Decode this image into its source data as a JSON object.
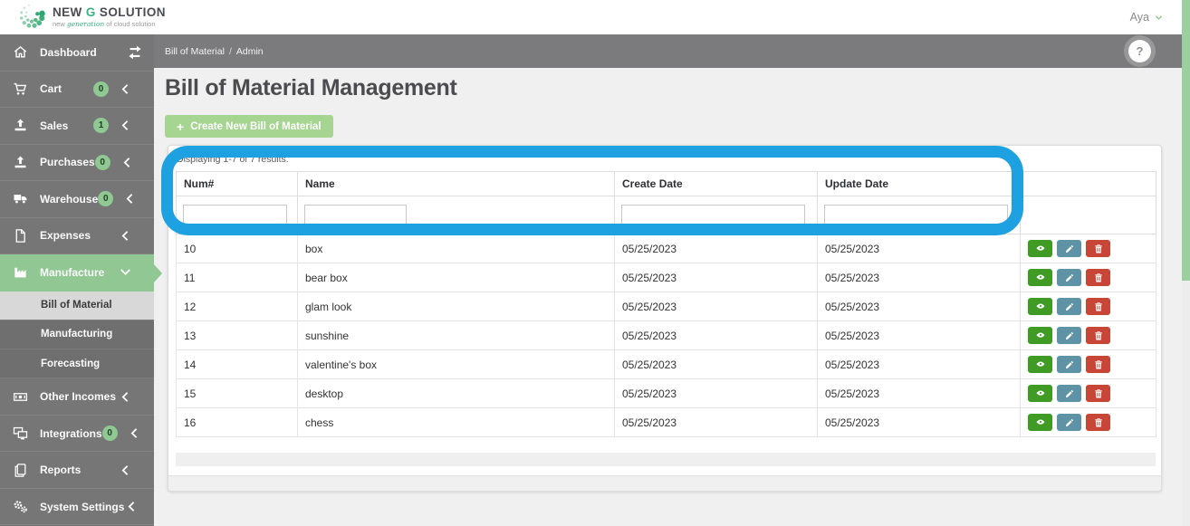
{
  "topbar": {
    "user_name": "Aya"
  },
  "logo": {
    "brand_new": "NEW",
    "brand_g": "G",
    "brand_solution": "SOLUTION",
    "tagline_pre": "new",
    "tagline_accent": "generation",
    "tagline_post": "of cloud solution"
  },
  "breadcrumb": {
    "section": "Bill of Material",
    "separator": "/",
    "page": "Admin"
  },
  "page": {
    "title": "Bill of Material Management",
    "create_button_label": "Create New Bill of Material",
    "plus_glyph": "+",
    "summary": "Displaying 1-7 of 7 results.",
    "help_glyph": "?"
  },
  "sidebar": {
    "items": [
      {
        "label": "Dashboard",
        "icon": "home",
        "right_icon": "swap"
      },
      {
        "label": "Cart",
        "icon": "cart",
        "badge": "0",
        "chevron": "left"
      },
      {
        "label": "Sales",
        "icon": "upload",
        "badge": "1",
        "chevron": "left"
      },
      {
        "label": "Purchases",
        "icon": "upload",
        "badge": "0",
        "chevron": "left"
      },
      {
        "label": "Warehouse",
        "icon": "truck",
        "badge": "0",
        "chevron": "left"
      },
      {
        "label": "Expenses",
        "icon": "file",
        "chevron": "left"
      },
      {
        "label": "Manufacture",
        "icon": "factory",
        "chevron": "down",
        "active": true,
        "submenu": [
          {
            "label": "Bill of Material",
            "active": true
          },
          {
            "label": "Manufacturing"
          },
          {
            "label": "Forecasting"
          }
        ]
      },
      {
        "label": "Other Incomes",
        "icon": "money",
        "chevron": "left"
      },
      {
        "label": "Integrations",
        "icon": "screens",
        "badge": "0",
        "chevron": "left"
      },
      {
        "label": "Reports",
        "icon": "copy",
        "chevron": "left"
      },
      {
        "label": "System Settings",
        "icon": "gears",
        "chevron": "left"
      }
    ]
  },
  "table": {
    "columns": [
      "Num#",
      "Name",
      "Create Date",
      "Update Date"
    ],
    "rows": [
      {
        "num": "10",
        "name": "box",
        "create_date": "05/25/2023",
        "update_date": "05/25/2023"
      },
      {
        "num": "11",
        "name": "bear box",
        "create_date": "05/25/2023",
        "update_date": "05/25/2023"
      },
      {
        "num": "12",
        "name": "glam look",
        "create_date": "05/25/2023",
        "update_date": "05/25/2023"
      },
      {
        "num": "13",
        "name": "sunshine",
        "create_date": "05/25/2023",
        "update_date": "05/25/2023"
      },
      {
        "num": "14",
        "name": "valentine's box",
        "create_date": "05/25/2023",
        "update_date": "05/25/2023"
      },
      {
        "num": "15",
        "name": "desktop",
        "create_date": "05/25/2023",
        "update_date": "05/25/2023"
      },
      {
        "num": "16",
        "name": "chess",
        "create_date": "05/25/2023",
        "update_date": "05/25/2023"
      }
    ],
    "actions": [
      "view",
      "edit",
      "delete"
    ]
  },
  "colors": {
    "sidebar_active_green": "#90c793",
    "badge_green": "#8fc893",
    "create_button_green": "#a5d590",
    "annotation_blue": "#1da1e0",
    "view_button_green": "#3f9b24",
    "edit_button_blue": "#5e93a6",
    "delete_button_red": "#c74638",
    "scrollbar_thumb_green": "#9ccf9f"
  }
}
